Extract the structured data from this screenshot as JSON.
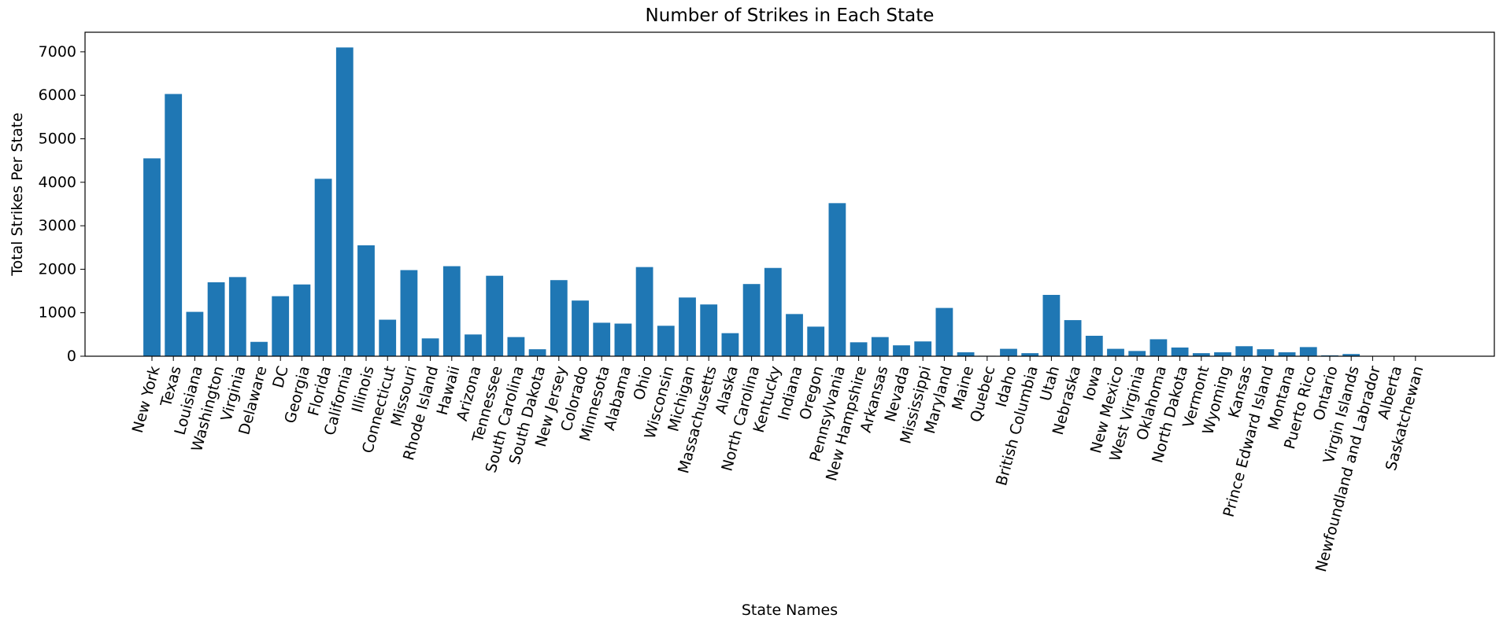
{
  "chart_data": {
    "type": "bar",
    "title": "Number of Strikes in Each State",
    "xlabel": "State Names",
    "ylabel": "Total Strikes Per State",
    "ylim": [
      0,
      7450
    ],
    "yticks": [
      0,
      1000,
      2000,
      3000,
      4000,
      5000,
      6000,
      7000
    ],
    "grid": false,
    "bar_color": "#1f77b4",
    "categories": [
      "New York",
      "Texas",
      "Louisiana",
      "Washington",
      "Virginia",
      "Delaware",
      "DC",
      "Georgia",
      "Florida",
      "California",
      "Illinois",
      "Connecticut",
      "Missouri",
      "Rhode Island",
      "Hawaii",
      "Arizona",
      "Tennessee",
      "South Carolina",
      "South Dakota",
      "New Jersey",
      "Colorado",
      "Minnesota",
      "Alabama",
      "Ohio",
      "Wisconsin",
      "Michigan",
      "Massachusetts",
      "Alaska",
      "North Carolina",
      "Kentucky",
      "Indiana",
      "Oregon",
      "Pennsylvania",
      "New Hampshire",
      "Arkansas",
      "Nevada",
      "Mississippi",
      "Maryland",
      "Maine",
      "Quebec",
      "Idaho",
      "British Columbia",
      "Utah",
      "Nebraska",
      "Iowa",
      "New Mexico",
      "West Virginia",
      "Oklahoma",
      "North Dakota",
      "Vermont",
      "Wyoming",
      "Kansas",
      "Prince Edward Island",
      "Montana",
      "Puerto Rico",
      "Ontario",
      "Virgin Islands",
      "Newfoundland and Labrador",
      "Alberta",
      "Saskatchewan"
    ],
    "values": [
      4550,
      6030,
      1020,
      1700,
      1820,
      330,
      1380,
      1650,
      4080,
      7100,
      2550,
      840,
      1980,
      410,
      2070,
      500,
      1850,
      440,
      160,
      1750,
      1280,
      770,
      750,
      2050,
      700,
      1350,
      1190,
      530,
      1660,
      2030,
      970,
      680,
      3520,
      320,
      440,
      250,
      340,
      1110,
      90,
      10,
      170,
      70,
      1410,
      830,
      470,
      170,
      120,
      390,
      200,
      70,
      90,
      230,
      160,
      90,
      210,
      20,
      50,
      5,
      5,
      5
    ]
  }
}
